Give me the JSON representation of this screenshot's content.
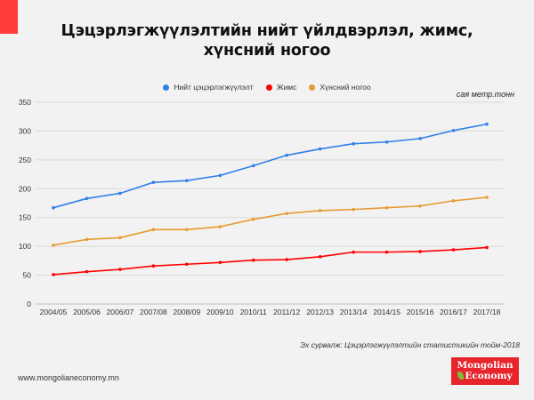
{
  "header": {
    "title_line1": "Цэцэрлэгжүүлэлтийн нийт үйлдвэрлэл, жимс,",
    "title_line2": "хүнсний ногоо",
    "accent_color": "#ff3b3b"
  },
  "unit_label": "сая метр.тонн",
  "source": "Эх сурвалж: Цэцэрлэгжүүлэлтийн статистикийн тойм-2018",
  "website": "www.mongolianeconomy.mn",
  "logo": {
    "line1": "Mongolian",
    "line2": "Economy",
    "color": "#e8242c"
  },
  "chart_data": {
    "type": "line",
    "title": "Цэцэрлэгжүүлэлтийн нийт үйлдвэрлэл, жимс, хүнсний ногоо",
    "xlabel": "",
    "ylabel": "сая метр.тонн",
    "ylim": [
      0,
      350
    ],
    "yticks": [
      0,
      50,
      100,
      150,
      200,
      250,
      300,
      350
    ],
    "grid": true,
    "legend_position": "top-center",
    "categories": [
      "2004/05",
      "2005/06",
      "2006/07",
      "2007/08",
      "2008/09",
      "2009/10",
      "2010/11",
      "2011/12",
      "2012/13",
      "2013/14",
      "2014/15",
      "2015/16",
      "2016/17",
      "2017/18"
    ],
    "series": [
      {
        "name": "Нийт цэцэрлэгжүүлэлт",
        "color": "#2f7fe8",
        "values": [
          167,
          183,
          192,
          211,
          214,
          223,
          240,
          258,
          269,
          278,
          281,
          287,
          301,
          312
        ]
      },
      {
        "name": "Жимс",
        "color": "#ff0000",
        "values": [
          51,
          56,
          60,
          66,
          69,
          72,
          76,
          77,
          82,
          90,
          90,
          91,
          94,
          98
        ]
      },
      {
        "name": "Хүнсний ногоо",
        "color": "#e69b30",
        "values": [
          102,
          112,
          115,
          129,
          129,
          134,
          147,
          157,
          162,
          164,
          167,
          170,
          179,
          185
        ]
      }
    ]
  }
}
